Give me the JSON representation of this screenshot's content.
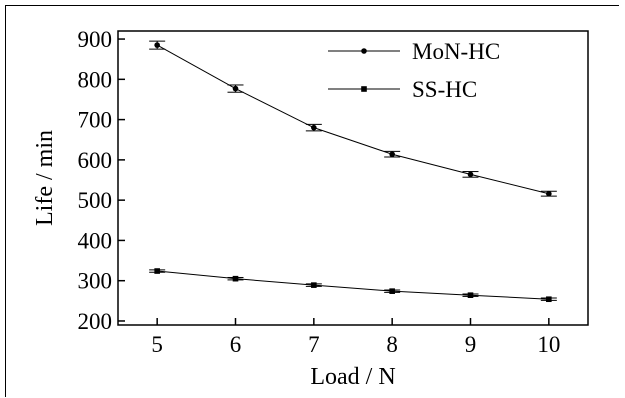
{
  "chart_data": {
    "type": "line",
    "x": [
      5,
      6,
      7,
      8,
      9,
      10
    ],
    "xlabel": "Load / N",
    "ylabel": "Life / min",
    "xlim": [
      4.5,
      10.5
    ],
    "ylim": [
      190,
      920
    ],
    "xticks": [
      "5",
      "6",
      "7",
      "8",
      "9",
      "10"
    ],
    "yticks": [
      "200",
      "300",
      "400",
      "500",
      "600",
      "700",
      "800",
      "900"
    ],
    "grid": false,
    "legend_position": "top-right",
    "series": [
      {
        "name": "MoN-HC",
        "marker": "circle",
        "values": [
          885,
          777,
          680,
          614,
          564,
          516
        ],
        "errors": [
          10,
          9,
          8,
          7,
          7,
          6
        ]
      },
      {
        "name": "SS-HC",
        "marker": "square",
        "values": [
          324,
          305,
          289,
          274,
          264,
          254
        ],
        "errors": [
          3,
          3,
          3,
          3,
          3,
          3
        ]
      }
    ]
  }
}
